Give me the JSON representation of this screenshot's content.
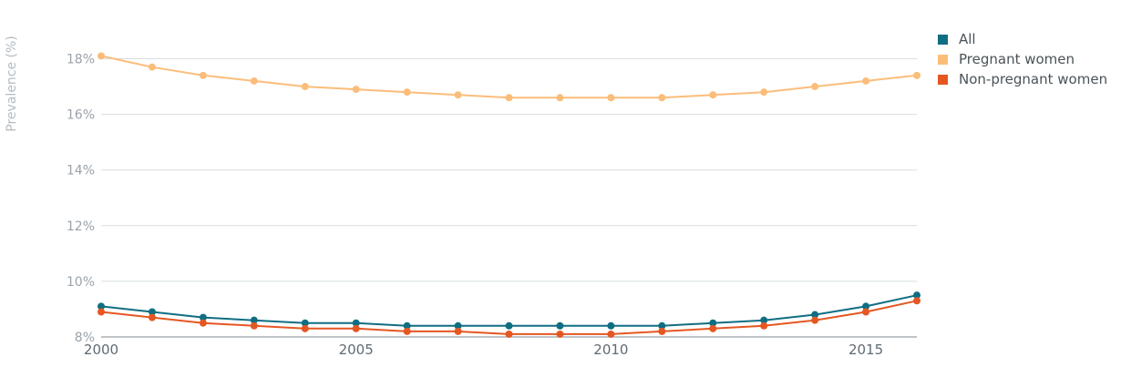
{
  "chart_data": {
    "type": "line",
    "ylabel": "Prevalence (%)",
    "ylim": [
      8,
      19
    ],
    "y_ticks": [
      "8%",
      "10%",
      "12%",
      "14%",
      "16%",
      "18%"
    ],
    "y_tick_values": [
      8,
      10,
      12,
      14,
      16,
      18
    ],
    "x_ticks": [
      "2000",
      "2005",
      "2010",
      "2015"
    ],
    "x_tick_values": [
      2000,
      2005,
      2010,
      2015
    ],
    "xlim": [
      2000,
      2016
    ],
    "grid": true,
    "legend_position": "top-right",
    "x": [
      2000,
      2001,
      2002,
      2003,
      2004,
      2005,
      2006,
      2007,
      2008,
      2009,
      2010,
      2011,
      2012,
      2013,
      2014,
      2015,
      2016
    ],
    "series": [
      {
        "name": "All",
        "color": "#0f6e82",
        "values": [
          9.1,
          8.9,
          8.7,
          8.6,
          8.5,
          8.5,
          8.4,
          8.4,
          8.4,
          8.4,
          8.4,
          8.4,
          8.5,
          8.6,
          8.8,
          9.1,
          9.5
        ]
      },
      {
        "name": "Pregnant women",
        "color": "#fbbd7a",
        "values": [
          18.1,
          17.7,
          17.4,
          17.2,
          17.0,
          16.9,
          16.8,
          16.7,
          16.6,
          16.6,
          16.6,
          16.6,
          16.7,
          16.8,
          17.0,
          17.2,
          17.4
        ]
      },
      {
        "name": "Non-pregnant women",
        "color": "#e55722",
        "values": [
          8.9,
          8.7,
          8.5,
          8.4,
          8.3,
          8.3,
          8.2,
          8.2,
          8.1,
          8.1,
          8.1,
          8.2,
          8.3,
          8.4,
          8.6,
          8.9,
          9.3
        ]
      }
    ]
  }
}
